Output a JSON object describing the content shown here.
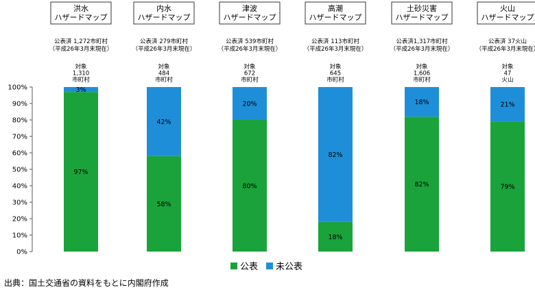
{
  "chart_data": {
    "type": "bar",
    "stacked": true,
    "percent": true,
    "categories": [
      {
        "title": [
          "洪水",
          "ハザードマップ"
        ],
        "published": [
          "公表済 1,272市町村",
          "（平成26年3月末現在）"
        ],
        "target": [
          "対象",
          "1,310",
          "市町村"
        ]
      },
      {
        "title": [
          "内水",
          "ハザードマップ"
        ],
        "published": [
          "公表済 279市町村",
          "（平成26年3月末現在）"
        ],
        "target": [
          "対象",
          "484",
          "市町村"
        ]
      },
      {
        "title": [
          "津波",
          "ハザードマップ"
        ],
        "published": [
          "公表済 539市町村",
          "（平成26年3月末現在）"
        ],
        "target": [
          "対象",
          "672",
          "市町村"
        ]
      },
      {
        "title": [
          "高潮",
          "ハザードマップ"
        ],
        "published": [
          "公表済 113市町村",
          "（平成26年3月末現在）"
        ],
        "target": [
          "対象",
          "645",
          "市町村"
        ]
      },
      {
        "title": [
          "土砂災害",
          "ハザードマップ"
        ],
        "published": [
          "公表済1,317市町村",
          "（平成26年3月末現在）"
        ],
        "target": [
          "対象",
          "1,606",
          "市町村"
        ]
      },
      {
        "title": [
          "火山",
          "ハザードマップ"
        ],
        "published": [
          "公表済 37火山",
          "（平成26年3月末現在）"
        ],
        "target": [
          "対象",
          "47",
          "火山"
        ]
      }
    ],
    "series": [
      {
        "name": "公表",
        "color": "#1aa33a",
        "values": [
          97,
          58,
          80,
          18,
          82,
          79
        ],
        "labels": [
          "97%",
          "58%",
          "80%",
          "18%",
          "82%",
          "79%"
        ]
      },
      {
        "name": "未公表",
        "color": "#1f8ed8",
        "values": [
          3,
          42,
          20,
          82,
          18,
          21
        ],
        "labels": [
          "3%",
          "42%",
          "20%",
          "82%",
          "18%",
          "21%"
        ]
      }
    ],
    "ylim": [
      0,
      100
    ],
    "yticks": [
      "0%",
      "10%",
      "20%",
      "30%",
      "40%",
      "50%",
      "60%",
      "70%",
      "80%",
      "90%",
      "100%"
    ],
    "legend": "bottom"
  },
  "source": "出典：国土交通省の資料をもとに内閣府作成"
}
